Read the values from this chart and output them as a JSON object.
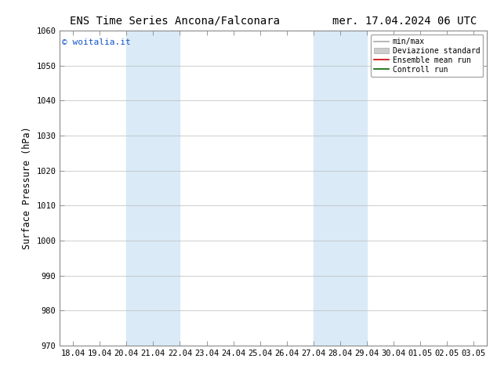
{
  "title_left": "ENS Time Series Ancona/Falconara",
  "title_right": "mer. 17.04.2024 06 UTC",
  "ylabel": "Surface Pressure (hPa)",
  "ylim": [
    970,
    1060
  ],
  "yticks": [
    970,
    980,
    990,
    1000,
    1010,
    1020,
    1030,
    1040,
    1050,
    1060
  ],
  "x_labels": [
    "18.04",
    "19.04",
    "20.04",
    "21.04",
    "22.04",
    "23.04",
    "24.04",
    "25.04",
    "26.04",
    "27.04",
    "28.04",
    "29.04",
    "30.04",
    "01.05",
    "02.05",
    "03.05"
  ],
  "x_values": [
    0,
    1,
    2,
    3,
    4,
    5,
    6,
    7,
    8,
    9,
    10,
    11,
    12,
    13,
    14,
    15
  ],
  "shaded_bands": [
    {
      "xmin": 2.0,
      "xmax": 4.0
    },
    {
      "xmin": 9.0,
      "xmax": 11.0
    }
  ],
  "band_color": "#daeaf7",
  "background_color": "#ffffff",
  "watermark": "© woitalia.it",
  "watermark_color": "#1155cc",
  "legend_items": [
    {
      "label": "min/max",
      "color": "#aaaaaa",
      "lw": 1.2,
      "type": "line"
    },
    {
      "label": "Deviazione standard",
      "color": "#cccccc",
      "lw": 5,
      "type": "bar"
    },
    {
      "label": "Ensemble mean run",
      "color": "#cc0000",
      "lw": 1.2,
      "type": "line"
    },
    {
      "label": "Controll run",
      "color": "#006600",
      "lw": 1.2,
      "type": "line"
    }
  ],
  "grid_color": "#bbbbbb",
  "tick_label_fontsize": 7.5,
  "ylabel_fontsize": 8.5,
  "title_fontsize": 10,
  "watermark_fontsize": 8
}
